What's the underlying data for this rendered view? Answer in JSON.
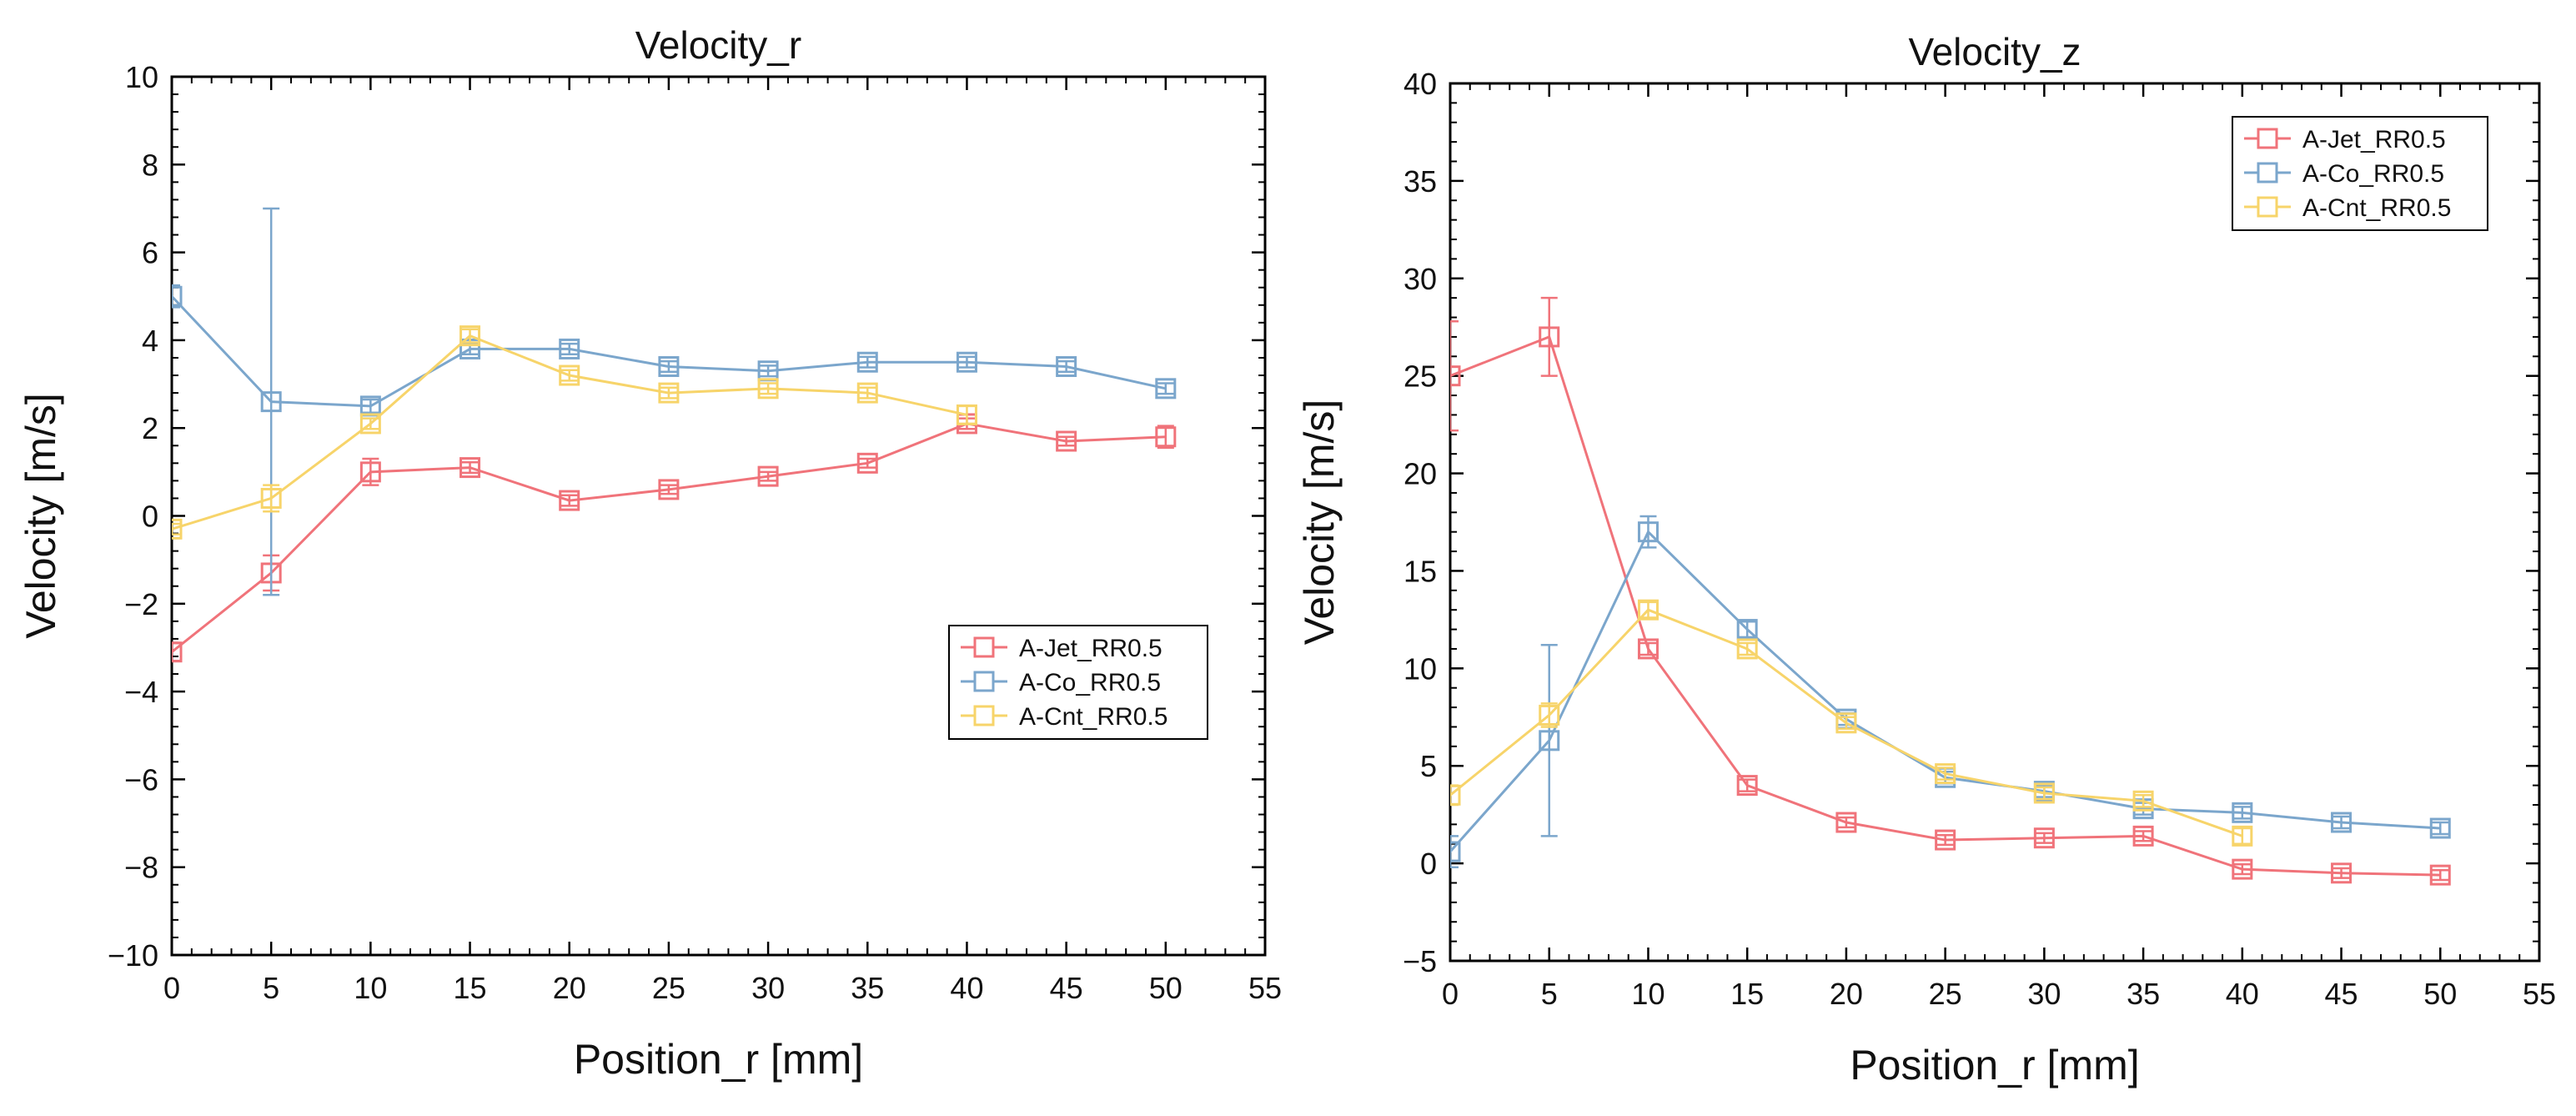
{
  "chart_data": [
    {
      "type": "line",
      "title": "Velocity_r",
      "xlabel": "Position_r [mm]",
      "ylabel": "Velocity [m/s]",
      "xlim": [
        0,
        55
      ],
      "ylim": [
        -10,
        10
      ],
      "xticks": [
        0,
        5,
        10,
        15,
        20,
        25,
        30,
        35,
        40,
        45,
        50,
        55
      ],
      "yticks": [
        -10,
        -8,
        -6,
        -4,
        -2,
        0,
        2,
        4,
        6,
        8,
        10
      ],
      "xtick_labels": [
        "0",
        "5",
        "10",
        "15",
        "20",
        "25",
        "30",
        "35",
        "40",
        "45",
        "50",
        "55"
      ],
      "ytick_labels": [
        "−10",
        "−8",
        "−6",
        "−4",
        "−2",
        "0",
        "2",
        "4",
        "6",
        "8",
        "10"
      ],
      "legend_position": "center-right",
      "series": [
        {
          "name": "A-Jet_RR0.5",
          "color": "#f0737a",
          "x": [
            0,
            5,
            10,
            15,
            20,
            25,
            30,
            35,
            40,
            45,
            50
          ],
          "values": [
            -3.1,
            -1.3,
            1.0,
            1.1,
            0.35,
            0.6,
            0.9,
            1.2,
            2.1,
            1.7,
            1.8
          ],
          "err": [
            0.2,
            0.4,
            0.3,
            0.12,
            0.12,
            0.1,
            0.1,
            0.1,
            0.12,
            0.1,
            0.25
          ]
        },
        {
          "name": "A-Co_RR0.5",
          "color": "#7ba6cc",
          "x": [
            0,
            5,
            10,
            15,
            20,
            25,
            30,
            35,
            40,
            45,
            50
          ],
          "values": [
            5.0,
            2.6,
            2.5,
            3.8,
            3.8,
            3.4,
            3.3,
            3.5,
            3.5,
            3.4,
            2.9
          ],
          "err": [
            0.25,
            4.4,
            0.15,
            0.12,
            0.12,
            0.12,
            0.12,
            0.12,
            0.12,
            0.12,
            0.12
          ]
        },
        {
          "name": "A-Cnt_RR0.5",
          "color": "#f7d46a",
          "x": [
            0,
            5,
            10,
            15,
            20,
            25,
            30,
            35,
            40
          ],
          "values": [
            -0.3,
            0.4,
            2.1,
            4.1,
            3.2,
            2.8,
            2.9,
            2.8,
            2.3
          ],
          "err": [
            0.12,
            0.3,
            0.12,
            0.15,
            0.12,
            0.12,
            0.12,
            0.12,
            0.2
          ]
        }
      ]
    },
    {
      "type": "line",
      "title": "Velocity_z",
      "xlabel": "Position_r [mm]",
      "ylabel": "Velocity [m/s]",
      "xlim": [
        0,
        55
      ],
      "ylim": [
        -5,
        40
      ],
      "xticks": [
        0,
        5,
        10,
        15,
        20,
        25,
        30,
        35,
        40,
        45,
        50,
        55
      ],
      "yticks": [
        -5,
        0,
        5,
        10,
        15,
        20,
        25,
        30,
        35,
        40
      ],
      "xtick_labels": [
        "0",
        "5",
        "10",
        "15",
        "20",
        "25",
        "30",
        "35",
        "40",
        "45",
        "50",
        "55"
      ],
      "ytick_labels": [
        "−5",
        "0",
        "5",
        "10",
        "15",
        "20",
        "25",
        "30",
        "35",
        "40"
      ],
      "legend_position": "top-right",
      "series": [
        {
          "name": "A-Jet_RR0.5",
          "color": "#f0737a",
          "x": [
            0,
            5,
            10,
            15,
            20,
            25,
            30,
            35,
            40,
            45,
            50
          ],
          "values": [
            25.0,
            27.0,
            11.0,
            4.0,
            2.1,
            1.2,
            1.3,
            1.4,
            -0.3,
            -0.5,
            -0.6
          ],
          "err": [
            2.8,
            2.0,
            0.3,
            0.3,
            0.25,
            0.25,
            0.25,
            0.25,
            0.25,
            0.25,
            0.25
          ]
        },
        {
          "name": "A-Co_RR0.5",
          "color": "#7ba6cc",
          "x": [
            0,
            5,
            10,
            15,
            20,
            25,
            30,
            35,
            40,
            45,
            50
          ],
          "values": [
            0.6,
            6.3,
            17.0,
            12.0,
            7.4,
            4.4,
            3.7,
            2.8,
            2.6,
            2.1,
            1.8
          ],
          "err": [
            0.8,
            4.9,
            0.8,
            0.4,
            0.3,
            0.3,
            0.3,
            0.3,
            0.3,
            0.3,
            0.3
          ]
        },
        {
          "name": "A-Cnt_RR0.5",
          "color": "#f7d46a",
          "x": [
            0,
            5,
            10,
            15,
            20,
            25,
            30,
            35,
            40
          ],
          "values": [
            3.5,
            7.6,
            13.0,
            11.0,
            7.2,
            4.6,
            3.6,
            3.2,
            1.4
          ],
          "err": [
            0.5,
            0.6,
            0.4,
            0.3,
            0.3,
            0.3,
            0.3,
            0.3,
            0.4
          ]
        }
      ]
    }
  ]
}
